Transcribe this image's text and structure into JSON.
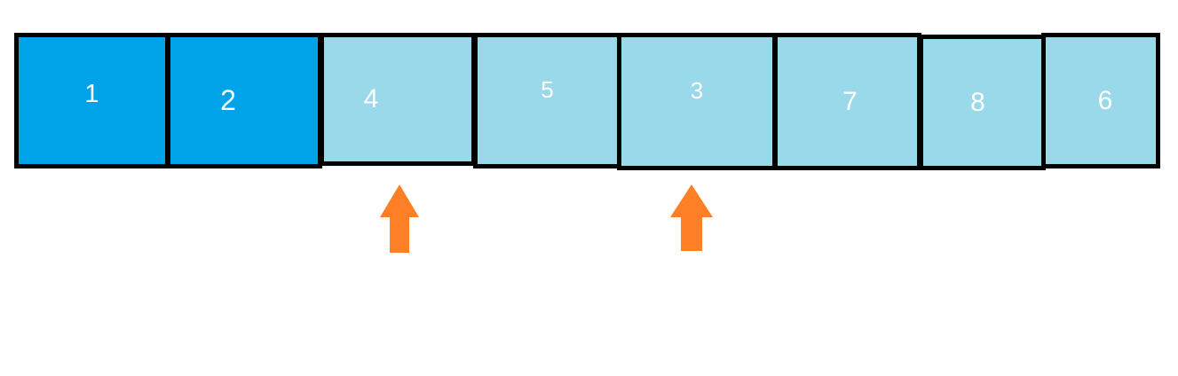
{
  "colors": {
    "sorted": "#00a2e8",
    "unsorted": "#99d9ea",
    "border": "#000000",
    "text": "#ffffff",
    "pointer": "#ff7f27"
  },
  "cells": [
    {
      "label": "1",
      "state": "sorted"
    },
    {
      "label": "2",
      "state": "sorted"
    },
    {
      "label": "4",
      "state": "unsorted"
    },
    {
      "label": "5",
      "state": "unsorted"
    },
    {
      "label": "3",
      "state": "unsorted"
    },
    {
      "label": "7",
      "state": "unsorted"
    },
    {
      "label": "8",
      "state": "unsorted"
    },
    {
      "label": "6",
      "state": "unsorted"
    }
  ],
  "pointers": [
    {
      "icon": "up-arrow-icon",
      "cell_index": 2
    },
    {
      "icon": "up-arrow-icon",
      "cell_index": 4
    }
  ]
}
